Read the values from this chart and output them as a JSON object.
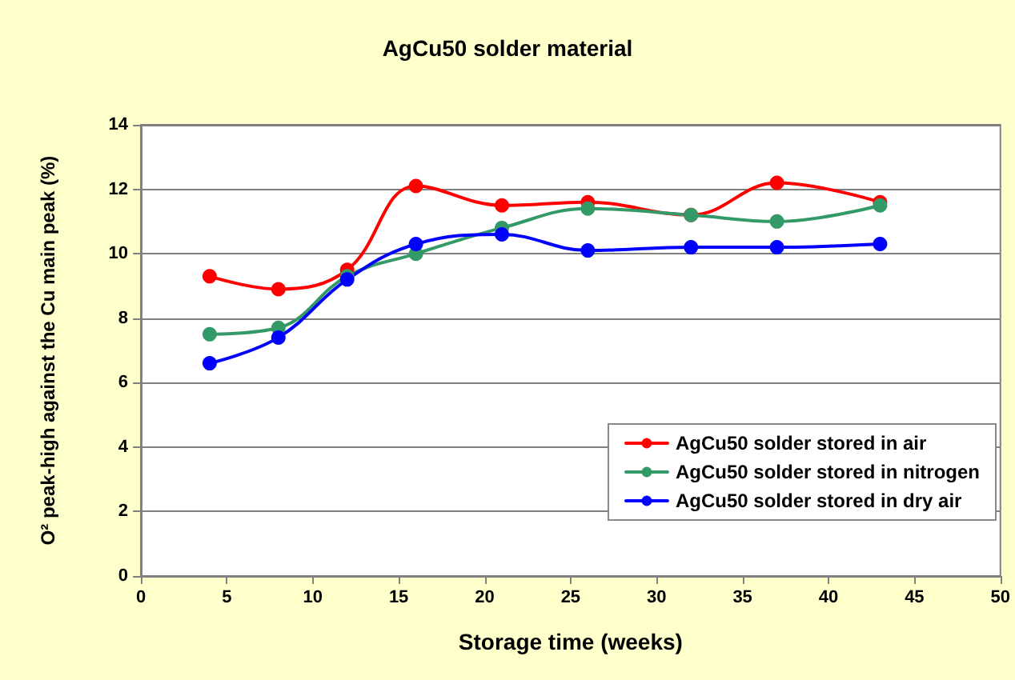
{
  "chart_data": {
    "type": "line",
    "title": "AgCu50 solder material",
    "xlabel": "Storage time (weeks)",
    "ylabel": "O² peak-high against the Cu main peak (%)",
    "x": [
      4,
      8,
      12,
      16,
      21,
      26,
      32,
      37,
      43
    ],
    "series": [
      {
        "name": "AgCu50 solder stored in air",
        "color": "#ff0000",
        "values": [
          9.3,
          8.9,
          9.5,
          12.1,
          11.5,
          11.6,
          11.2,
          12.2,
          11.6
        ]
      },
      {
        "name": "AgCu50 solder stored in nitrogen",
        "color": "#339966",
        "values": [
          7.5,
          7.7,
          9.3,
          10.0,
          10.8,
          11.4,
          11.2,
          11.0,
          11.5
        ]
      },
      {
        "name": "AgCu50 solder stored in dry air",
        "color": "#0000ff",
        "values": [
          6.6,
          7.4,
          9.2,
          10.3,
          10.6,
          10.1,
          10.2,
          10.2,
          10.3
        ]
      }
    ],
    "xlim": [
      0,
      50
    ],
    "xticks": [
      0,
      5,
      10,
      15,
      20,
      25,
      30,
      35,
      40,
      45,
      50
    ],
    "ylim": [
      0,
      14
    ],
    "yticks": [
      0,
      2,
      4,
      6,
      8,
      10,
      12,
      14
    ],
    "grid": "y",
    "legend": "bottom right",
    "marker": "circle",
    "line_style": "solid"
  }
}
